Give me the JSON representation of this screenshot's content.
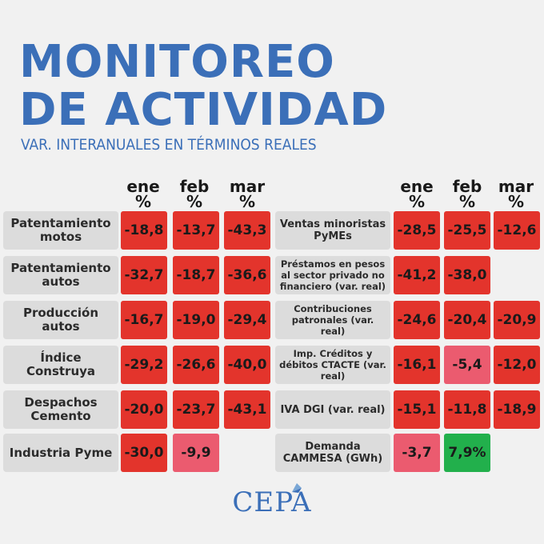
{
  "title_line1": "MONITOREO",
  "title_line2": "DE ACTIVIDAD",
  "subtitle": "VAR. INTERANUALES EN TÉRMINOS REALES",
  "columns": [
    "ene",
    "feb",
    "mar"
  ],
  "pct": "%",
  "left_rows": [
    {
      "label": "Patentamiento motos",
      "values": [
        "-18,8",
        "-13,7",
        "-43,3"
      ]
    },
    {
      "label": "Patentamiento autos",
      "values": [
        "-32,7",
        "-18,7",
        "-36,6"
      ]
    },
    {
      "label": "Producción autos",
      "values": [
        "-16,7",
        "-19,0",
        "-29,4"
      ]
    },
    {
      "label": "Índice Construya",
      "values": [
        "-29,2",
        "-26,6",
        "-40,0"
      ]
    },
    {
      "label": "Despachos Cemento",
      "values": [
        "-20,0",
        "-23,7",
        "-43,1"
      ]
    },
    {
      "label": "Industria Pyme",
      "values": [
        "-30,0",
        "-9,9",
        ""
      ]
    }
  ],
  "right_rows": [
    {
      "label": "Ventas minoristas PyMEs",
      "values": [
        "-28,5",
        "-25,5",
        "-12,6"
      ]
    },
    {
      "label": "Préstamos en pesos al sector privado no financiero (var. real)",
      "values": [
        "-41,2",
        "-38,0",
        ""
      ]
    },
    {
      "label": "Contribuciones patronales (var. real)",
      "values": [
        "-24,6",
        "-20,4",
        "-20,9"
      ]
    },
    {
      "label": "Imp. Créditos y débitos CTACTE (var. real)",
      "values": [
        "-16,1",
        "-5,4",
        "-12,0"
      ]
    },
    {
      "label": "IVA DGI (var. real)",
      "values": [
        "-15,1",
        "-11,8",
        "-18,9"
      ]
    },
    {
      "label": "Demanda CAMMESA (GWh)",
      "values": [
        "-3,7",
        "7,9%",
        ""
      ]
    }
  ],
  "colors": {
    "negative": "#e3342c",
    "mild_negative": "#eb5b6f",
    "positive": "#22b04c",
    "brand": "#3b6fb8"
  },
  "logo_text": "CEPA"
}
